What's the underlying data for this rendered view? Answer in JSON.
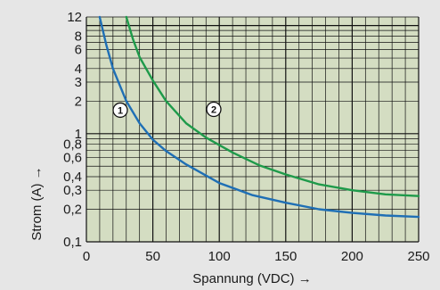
{
  "chart_data": {
    "type": "line",
    "xlabel": "Spannung (VDC) →",
    "ylabel": "Strom (A) →",
    "xlim": [
      0,
      250
    ],
    "ylim": [
      0.1,
      12
    ],
    "y_scale": "log",
    "grid": true,
    "x_ticks": [
      0,
      50,
      100,
      150,
      200,
      250
    ],
    "y_ticks": [
      {
        "value": 0.1,
        "label": "0,1"
      },
      {
        "value": 0.2,
        "label": "0,2"
      },
      {
        "value": 0.3,
        "label": "0,3"
      },
      {
        "value": 0.4,
        "label": "0,4"
      },
      {
        "value": 0.6,
        "label": "0,6"
      },
      {
        "value": 0.8,
        "label": "0,8"
      },
      {
        "value": 1,
        "label": "1"
      },
      {
        "value": 2,
        "label": "2"
      },
      {
        "value": 3,
        "label": "3"
      },
      {
        "value": 4,
        "label": "4"
      },
      {
        "value": 6,
        "label": "6"
      },
      {
        "value": 8,
        "label": "8"
      },
      {
        "value": 12,
        "label": "12"
      }
    ],
    "series": [
      {
        "name": "1",
        "color": "#1f6fb5",
        "x": [
          10,
          15,
          20,
          30,
          40,
          50,
          60,
          75,
          100,
          125,
          150,
          175,
          200,
          225,
          250
        ],
        "y": [
          12,
          6.6,
          4.0,
          2.0,
          1.25,
          0.88,
          0.69,
          0.52,
          0.35,
          0.27,
          0.23,
          0.2,
          0.185,
          0.175,
          0.17
        ]
      },
      {
        "name": "2",
        "color": "#1e9a4a",
        "x": [
          30,
          35,
          40,
          50,
          60,
          75,
          90,
          110,
          130,
          150,
          175,
          200,
          225,
          250
        ],
        "y": [
          12,
          7.5,
          5.1,
          3.1,
          2.0,
          1.25,
          0.92,
          0.67,
          0.51,
          0.42,
          0.34,
          0.3,
          0.275,
          0.265
        ]
      }
    ]
  }
}
